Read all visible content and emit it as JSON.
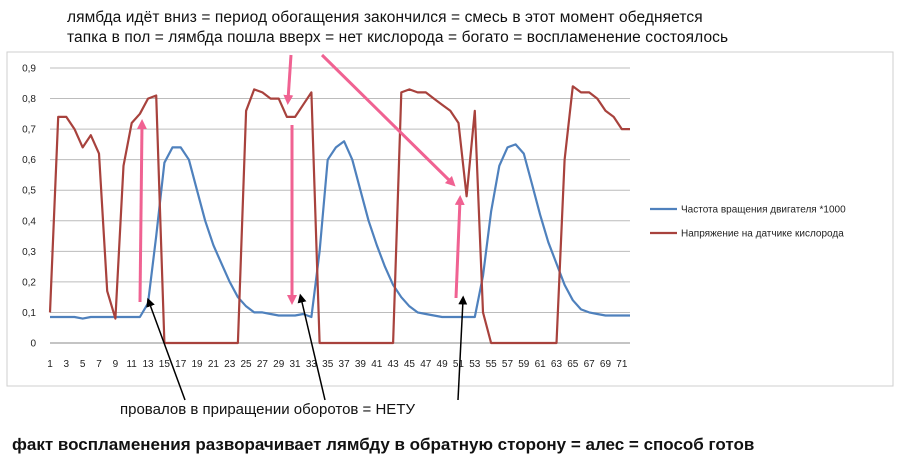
{
  "annotations": {
    "line1": "лямбда идёт вниз = период обогащения закончился = смесь в этот момент обедняется",
    "line2": "тапка в пол = лямбда пошла вверх = нет кислорода = богато = воспламенение состоялось",
    "bottom_note": "провалов в приращении оборотов  = НЕТУ",
    "caption": "факт воспламенения разворачивает лямбду в обратную сторону  = алес = способ готов"
  },
  "colors": {
    "rpm": "#4f81bd",
    "o2": "#a8423d",
    "arrow_pink": "#f06292",
    "arrow_black": "#000000",
    "grid": "#bcbcbc"
  },
  "chart_data": {
    "type": "line",
    "x": [
      1,
      2,
      3,
      4,
      5,
      6,
      7,
      8,
      9,
      10,
      11,
      12,
      13,
      14,
      15,
      16,
      17,
      18,
      19,
      20,
      21,
      22,
      23,
      24,
      25,
      26,
      27,
      28,
      29,
      30,
      31,
      32,
      33,
      34,
      35,
      36,
      37,
      38,
      39,
      40,
      41,
      42,
      43,
      44,
      45,
      46,
      47,
      48,
      49,
      50,
      51,
      52,
      53,
      54,
      55,
      56,
      57,
      58,
      59,
      60,
      61,
      62,
      63,
      64,
      65,
      66,
      67,
      68,
      69,
      70,
      71,
      72
    ],
    "x_tick_labels": [
      "1",
      "3",
      "5",
      "7",
      "9",
      "11",
      "13",
      "15",
      "17",
      "19",
      "21",
      "23",
      "25",
      "27",
      "29",
      "31",
      "33",
      "35",
      "37",
      "39",
      "41",
      "43",
      "45",
      "47",
      "49",
      "51",
      "53",
      "55",
      "57",
      "59",
      "61",
      "63",
      "65",
      "67",
      "69",
      "71"
    ],
    "y_ticks": [
      "0",
      "0,1",
      "0,2",
      "0,3",
      "0,4",
      "0,5",
      "0,6",
      "0,7",
      "0,8",
      "0,9"
    ],
    "ylim": [
      0,
      0.9
    ],
    "grid": true,
    "legend_position": "right",
    "series": [
      {
        "name": "Частота вращения двигателя *1000",
        "values": [
          0.085,
          0.085,
          0.085,
          0.085,
          0.08,
          0.085,
          0.085,
          0.085,
          0.085,
          0.085,
          0.085,
          0.085,
          0.13,
          0.35,
          0.59,
          0.64,
          0.64,
          0.6,
          0.5,
          0.4,
          0.32,
          0.26,
          0.2,
          0.15,
          0.12,
          0.1,
          0.1,
          0.095,
          0.09,
          0.09,
          0.09,
          0.095,
          0.085,
          0.3,
          0.6,
          0.64,
          0.66,
          0.6,
          0.5,
          0.4,
          0.32,
          0.25,
          0.19,
          0.15,
          0.12,
          0.1,
          0.095,
          0.09,
          0.085,
          0.085,
          0.085,
          0.085,
          0.085,
          0.22,
          0.43,
          0.58,
          0.64,
          0.65,
          0.62,
          0.52,
          0.42,
          0.33,
          0.26,
          0.19,
          0.14,
          0.11,
          0.1,
          0.095,
          0.09,
          0.09,
          0.09,
          0.09
        ]
      },
      {
        "name": "Напряжение на датчике  кислорода",
        "values": [
          0.1,
          0.74,
          0.74,
          0.7,
          0.64,
          0.68,
          0.62,
          0.17,
          0.08,
          0.58,
          0.72,
          0.75,
          0.8,
          0.81,
          0,
          0,
          0,
          0,
          0,
          0,
          0,
          0,
          0,
          0,
          0.76,
          0.83,
          0.82,
          0.8,
          0.8,
          0.74,
          0.74,
          0.78,
          0.82,
          0,
          0,
          0,
          0,
          0,
          0,
          0,
          0,
          0,
          0,
          0.82,
          0.83,
          0.82,
          0.82,
          0.8,
          0.78,
          0.76,
          0.72,
          0.48,
          0.76,
          0.1,
          0,
          0,
          0,
          0,
          0,
          0,
          0,
          0,
          0,
          0.6,
          0.84,
          0.82,
          0.82,
          0.8,
          0.76,
          0.74,
          0.7,
          0.7
        ]
      }
    ]
  }
}
